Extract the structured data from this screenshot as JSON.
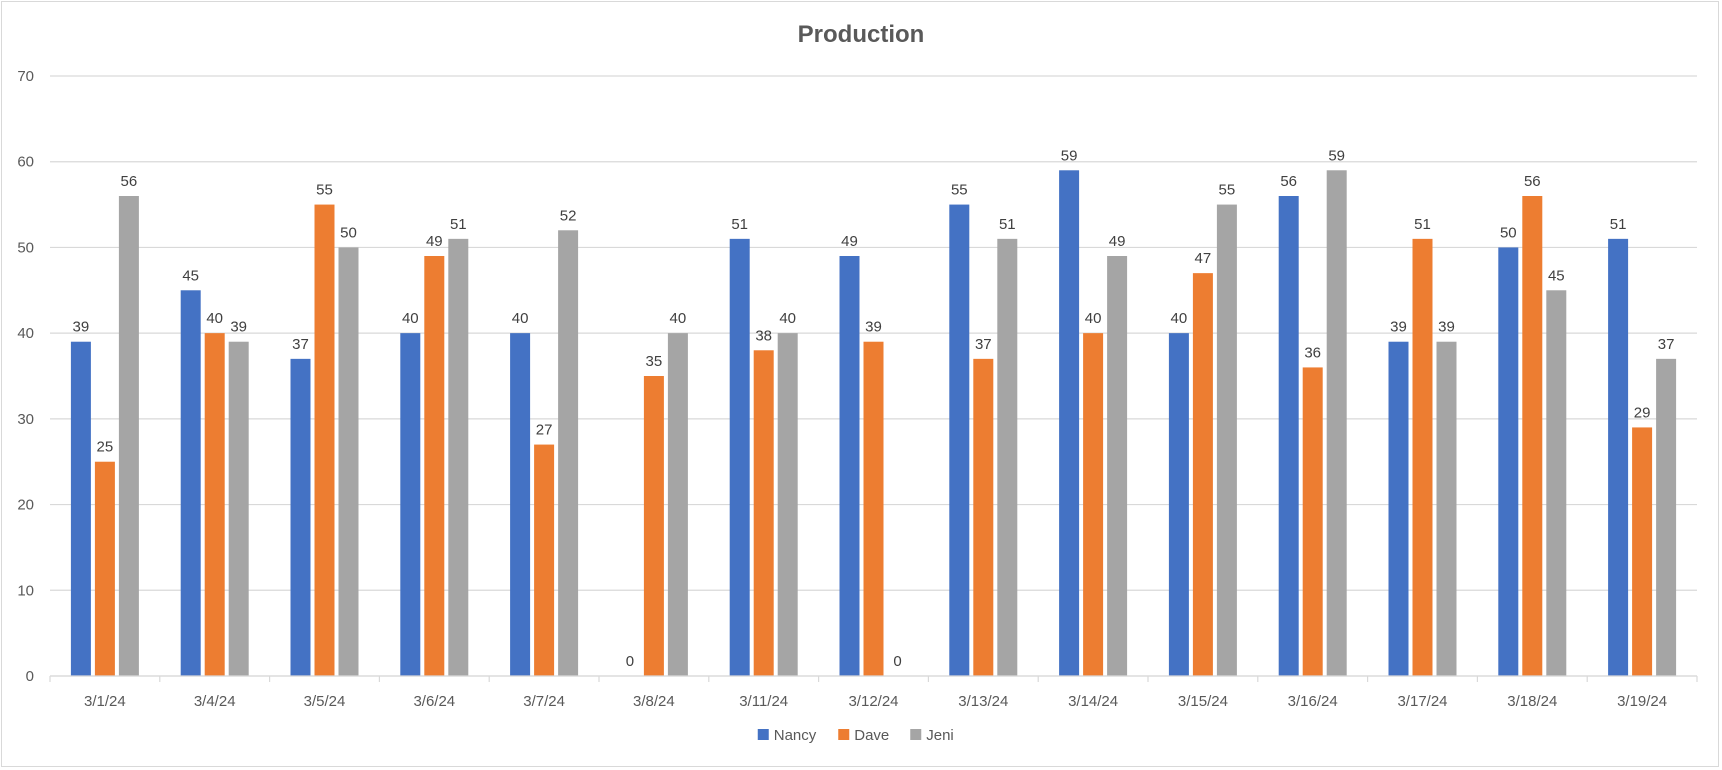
{
  "chart_data": {
    "type": "bar",
    "title": "Production",
    "xlabel": "",
    "ylabel": "",
    "ylim": [
      0,
      70
    ],
    "yticks": [
      0,
      10,
      20,
      30,
      40,
      50,
      60,
      70
    ],
    "grid": true,
    "legend": "bottom",
    "categories": [
      "3/1/24",
      "3/4/24",
      "3/5/24",
      "3/6/24",
      "3/7/24",
      "3/8/24",
      "3/11/24",
      "3/12/24",
      "3/13/24",
      "3/14/24",
      "3/15/24",
      "3/16/24",
      "3/17/24",
      "3/18/24",
      "3/19/24"
    ],
    "series": [
      {
        "name": "Nancy",
        "color": "#4472c4",
        "values": [
          39,
          45,
          37,
          40,
          40,
          0,
          51,
          49,
          55,
          59,
          40,
          56,
          39,
          50,
          51
        ]
      },
      {
        "name": "Dave",
        "color": "#ed7d31",
        "values": [
          25,
          40,
          55,
          49,
          27,
          35,
          38,
          39,
          37,
          40,
          47,
          36,
          51,
          56,
          29
        ]
      },
      {
        "name": "Jeni",
        "color": "#a5a5a5",
        "values": [
          56,
          39,
          50,
          51,
          52,
          40,
          40,
          0,
          51,
          49,
          55,
          59,
          39,
          45,
          37
        ]
      }
    ]
  }
}
